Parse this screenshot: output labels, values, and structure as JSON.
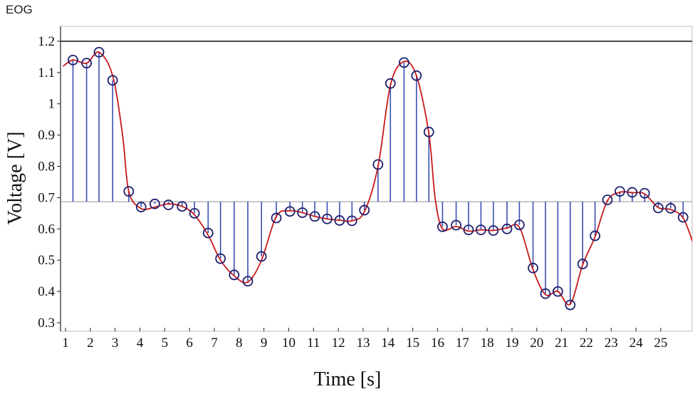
{
  "app_label": "EOG",
  "chart_data": {
    "type": "scatter",
    "style": "stem plot with smoothed red fit curve",
    "title": "",
    "xlabel": "Time [s]",
    "ylabel": "Voltage [V]",
    "xlim": [
      0.9,
      25.3
    ],
    "ylim": [
      0.28,
      1.22
    ],
    "x_ticks": [
      1,
      2,
      3,
      4,
      5,
      6,
      7,
      8,
      9,
      10,
      11,
      12,
      13,
      14,
      15,
      16,
      17,
      18,
      19,
      20,
      21,
      22,
      23,
      24,
      25
    ],
    "y_ticks": [
      0.3,
      0.4,
      0.5,
      0.6,
      0.7,
      0.8,
      0.9,
      1,
      1.1,
      1.2
    ],
    "y_tick_labels": [
      "0.3",
      "0.4",
      "0.5",
      "0.6",
      "0.7",
      "0.8",
      "0.9",
      "1",
      "1.1",
      "1.2"
    ],
    "baseline": 0.687,
    "upper_line": 1.2,
    "grid": false,
    "colors": {
      "stem": "#3a4fb3",
      "marker": "#1c1f6e",
      "curve": "#c8191b",
      "frame": "#bdbdbd"
    },
    "points": [
      [
        1.3,
        1.14
      ],
      [
        1.85,
        1.13
      ],
      [
        2.35,
        1.165
      ],
      [
        2.9,
        1.075
      ],
      [
        3.55,
        0.72
      ],
      [
        4.05,
        0.67
      ],
      [
        4.6,
        0.68
      ],
      [
        5.15,
        0.677
      ],
      [
        5.7,
        0.672
      ],
      [
        6.2,
        0.65
      ],
      [
        6.75,
        0.587
      ],
      [
        7.25,
        0.505
      ],
      [
        7.8,
        0.453
      ],
      [
        8.35,
        0.433
      ],
      [
        8.9,
        0.512
      ],
      [
        9.5,
        0.635
      ],
      [
        10.05,
        0.656
      ],
      [
        10.55,
        0.652
      ],
      [
        11.05,
        0.64
      ],
      [
        11.55,
        0.632
      ],
      [
        12.05,
        0.627
      ],
      [
        12.55,
        0.626
      ],
      [
        13.05,
        0.66
      ],
      [
        13.6,
        0.806
      ],
      [
        14.1,
        1.065
      ],
      [
        14.65,
        1.132
      ],
      [
        15.15,
        1.09
      ],
      [
        15.65,
        0.91
      ],
      [
        16.2,
        0.607
      ],
      [
        16.75,
        0.612
      ],
      [
        17.25,
        0.597
      ],
      [
        17.75,
        0.597
      ],
      [
        18.25,
        0.595
      ],
      [
        18.8,
        0.6
      ],
      [
        19.3,
        0.613
      ],
      [
        19.85,
        0.475
      ],
      [
        20.35,
        0.393
      ],
      [
        20.85,
        0.4
      ],
      [
        21.35,
        0.357
      ],
      [
        21.85,
        0.488
      ],
      [
        22.35,
        0.578
      ],
      [
        22.85,
        0.693
      ],
      [
        23.35,
        0.72
      ],
      [
        23.85,
        0.717
      ],
      [
        24.35,
        0.714
      ],
      [
        24.9,
        0.667
      ],
      [
        25.4,
        0.666
      ],
      [
        25.9,
        0.637
      ]
    ],
    "curve_x": [
      0.9,
      1.3,
      1.85,
      2.35,
      2.9,
      3.3,
      3.55,
      4.05,
      4.6,
      5.15,
      5.7,
      6.2,
      6.75,
      7.25,
      7.8,
      8.35,
      8.9,
      9.5,
      10.05,
      10.55,
      11.05,
      11.55,
      12.05,
      12.55,
      13.05,
      13.6,
      14.1,
      14.65,
      15.15,
      15.65,
      15.9,
      16.2,
      16.75,
      17.25,
      17.75,
      18.25,
      18.8,
      19.3,
      19.85,
      20.35,
      20.85,
      21.35,
      21.85,
      22.35,
      22.85,
      23.35,
      23.85,
      24.35,
      24.9,
      25.4,
      25.9,
      26.3
    ],
    "curve_y": [
      1.12,
      1.14,
      1.13,
      1.165,
      1.09,
      0.9,
      0.72,
      0.665,
      0.67,
      0.68,
      0.672,
      0.645,
      0.58,
      0.5,
      0.45,
      0.43,
      0.5,
      0.64,
      0.658,
      0.652,
      0.64,
      0.632,
      0.628,
      0.626,
      0.655,
      0.8,
      1.06,
      1.135,
      1.09,
      0.905,
      0.7,
      0.6,
      0.608,
      0.593,
      0.597,
      0.595,
      0.603,
      0.605,
      0.47,
      0.39,
      0.4,
      0.36,
      0.485,
      0.575,
      0.69,
      0.717,
      0.716,
      0.712,
      0.668,
      0.662,
      0.635,
      0.555
    ]
  }
}
